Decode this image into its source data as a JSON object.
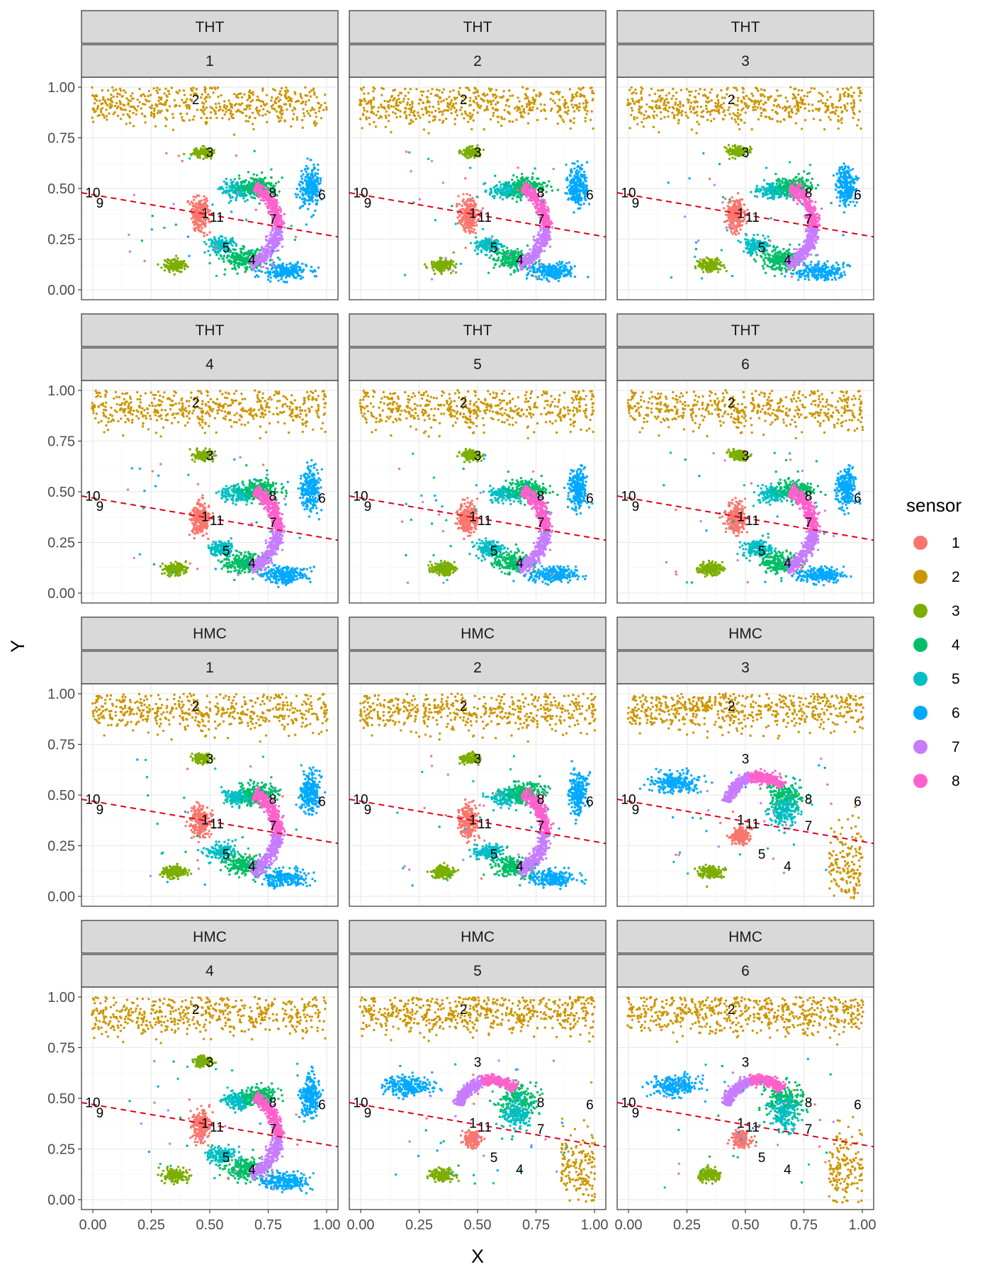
{
  "chart_data": {
    "type": "scatter",
    "xlabel": "X",
    "ylabel": "Y",
    "xlim": [
      0,
      1
    ],
    "ylim": [
      0,
      1
    ],
    "x_ticks": [
      "0.00",
      "0.25",
      "0.50",
      "0.75",
      "1.00"
    ],
    "y_ticks": [
      "0.00",
      "0.25",
      "0.50",
      "0.75",
      "1.00"
    ],
    "x_tick_values": [
      0,
      0.25,
      0.5,
      0.75,
      1
    ],
    "y_tick_values": [
      0,
      0.25,
      0.5,
      0.75,
      1
    ],
    "grid": true,
    "legend": {
      "title": "sensor",
      "position": "right",
      "entries": [
        {
          "label": "1",
          "color": "#F8766D"
        },
        {
          "label": "2",
          "color": "#CD9600"
        },
        {
          "label": "3",
          "color": "#7CAE00"
        },
        {
          "label": "4",
          "color": "#00BE67"
        },
        {
          "label": "5",
          "color": "#00BFC4"
        },
        {
          "label": "6",
          "color": "#00A9FF"
        },
        {
          "label": "7",
          "color": "#C77CFF"
        },
        {
          "label": "8",
          "color": "#FF61CC"
        }
      ]
    },
    "reference_line": {
      "style": "dashed",
      "color": "#e3001b",
      "x": [
        0,
        1
      ],
      "y": [
        0.47,
        0.27
      ]
    },
    "sensor_positions_a": [
      {
        "label": "1",
        "x": 0.48,
        "y": 0.38
      },
      {
        "label": "2",
        "x": 0.44,
        "y": 0.94
      },
      {
        "label": "3",
        "x": 0.5,
        "y": 0.68
      },
      {
        "label": "4",
        "x": 0.68,
        "y": 0.15
      },
      {
        "label": "5",
        "x": 0.57,
        "y": 0.21
      },
      {
        "label": "6",
        "x": 0.98,
        "y": 0.47
      },
      {
        "label": "7",
        "x": 0.77,
        "y": 0.35
      },
      {
        "label": "8",
        "x": 0.77,
        "y": 0.48
      },
      {
        "label": "9",
        "x": 0.03,
        "y": 0.43
      },
      {
        "label": "10",
        "x": 0.0,
        "y": 0.48
      },
      {
        "label": "11",
        "x": 0.53,
        "y": 0.36
      }
    ],
    "sensor_positions_b": [
      {
        "label": "1",
        "x": 0.48,
        "y": 0.38
      },
      {
        "label": "2",
        "x": 0.44,
        "y": 0.94
      },
      {
        "label": "3",
        "x": 0.5,
        "y": 0.68
      },
      {
        "label": "4",
        "x": 0.68,
        "y": 0.15
      },
      {
        "label": "5",
        "x": 0.57,
        "y": 0.21
      },
      {
        "label": "6",
        "x": 0.98,
        "y": 0.47
      },
      {
        "label": "7",
        "x": 0.77,
        "y": 0.35
      },
      {
        "label": "8",
        "x": 0.77,
        "y": 0.48
      },
      {
        "label": "9",
        "x": 0.03,
        "y": 0.43
      },
      {
        "label": "10",
        "x": 0.0,
        "y": 0.48
      },
      {
        "label": "11",
        "x": 0.53,
        "y": 0.36
      }
    ],
    "clusters_a": [
      {
        "sensor": "2",
        "x": 0.5,
        "y": 0.91,
        "sx": 0.28,
        "sy": 0.05,
        "n": 520
      },
      {
        "sensor": "3",
        "x": 0.47,
        "y": 0.68,
        "sx": 0.02,
        "sy": 0.012,
        "n": 140
      },
      {
        "sensor": "3",
        "x": 0.35,
        "y": 0.12,
        "sx": 0.025,
        "sy": 0.015,
        "n": 160
      },
      {
        "sensor": "1",
        "x": 0.46,
        "y": 0.37,
        "sx": 0.02,
        "sy": 0.04,
        "n": 230
      },
      {
        "sensor": "6",
        "x": 0.93,
        "y": 0.51,
        "sx": 0.02,
        "sy": 0.05,
        "n": 240
      },
      {
        "sensor": "6",
        "x": 0.82,
        "y": 0.09,
        "sx": 0.05,
        "sy": 0.02,
        "n": 220
      },
      {
        "sensor": "5",
        "x": 0.63,
        "y": 0.49,
        "sx": 0.04,
        "sy": 0.02,
        "n": 180
      },
      {
        "sensor": "5",
        "x": 0.55,
        "y": 0.22,
        "sx": 0.03,
        "sy": 0.02,
        "n": 150
      },
      {
        "sensor": "4",
        "x": 0.71,
        "y": 0.51,
        "sx": 0.04,
        "sy": 0.025,
        "n": 200
      },
      {
        "sensor": "4",
        "x": 0.65,
        "y": 0.15,
        "sx": 0.04,
        "sy": 0.025,
        "n": 220
      }
    ],
    "arc_a": {
      "cx": 0.64,
      "cy": 0.32,
      "rx": 0.15,
      "ry": 0.2,
      "start_deg": -75,
      "end_deg": 70,
      "sensors": [
        "7",
        "8"
      ],
      "n": 700
    },
    "clusters_b": [
      {
        "sensor": "2",
        "x": 0.5,
        "y": 0.92,
        "sx": 0.28,
        "sy": 0.05,
        "n": 600
      },
      {
        "sensor": "2",
        "x": 0.93,
        "y": 0.15,
        "sx": 0.04,
        "sy": 0.1,
        "n": 160
      },
      {
        "sensor": "3",
        "x": 0.35,
        "y": 0.12,
        "sx": 0.025,
        "sy": 0.015,
        "n": 160
      },
      {
        "sensor": "1",
        "x": 0.48,
        "y": 0.3,
        "sx": 0.02,
        "sy": 0.02,
        "n": 160
      },
      {
        "sensor": "6",
        "x": 0.2,
        "y": 0.56,
        "sx": 0.05,
        "sy": 0.025,
        "n": 240
      },
      {
        "sensor": "4",
        "x": 0.67,
        "y": 0.49,
        "sx": 0.04,
        "sy": 0.04,
        "n": 200
      },
      {
        "sensor": "5",
        "x": 0.67,
        "y": 0.42,
        "sx": 0.03,
        "sy": 0.04,
        "n": 160
      }
    ],
    "arc_b": {
      "cx": 0.56,
      "cy": 0.44,
      "rx": 0.14,
      "ry": 0.15,
      "start_deg": 45,
      "end_deg": 170,
      "sensors": [
        "8",
        "7"
      ],
      "n": 700
    },
    "facets": [
      {
        "row_label": "THT",
        "id": "1",
        "layout": "a"
      },
      {
        "row_label": "THT",
        "id": "2",
        "layout": "a"
      },
      {
        "row_label": "THT",
        "id": "3",
        "layout": "a"
      },
      {
        "row_label": "THT",
        "id": "4",
        "layout": "a"
      },
      {
        "row_label": "THT",
        "id": "5",
        "layout": "a"
      },
      {
        "row_label": "THT",
        "id": "6",
        "layout": "a"
      },
      {
        "row_label": "HMC",
        "id": "1",
        "layout": "a"
      },
      {
        "row_label": "HMC",
        "id": "2",
        "layout": "a"
      },
      {
        "row_label": "HMC",
        "id": "3",
        "layout": "b"
      },
      {
        "row_label": "HMC",
        "id": "4",
        "layout": "a"
      },
      {
        "row_label": "HMC",
        "id": "5",
        "layout": "b"
      },
      {
        "row_label": "HMC",
        "id": "6",
        "layout": "b"
      }
    ]
  }
}
